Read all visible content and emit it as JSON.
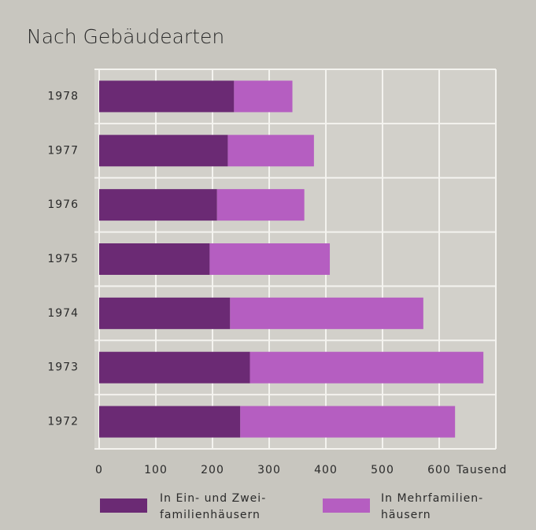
{
  "chart_data": {
    "type": "stacked-horizontal-bar",
    "title": "Nach Gebäudearten",
    "categories": [
      "1978",
      "1977",
      "1976",
      "1975",
      "1974",
      "1973",
      "1972"
    ],
    "series": [
      {
        "name": "In Ein- und Zwei-\nfamilienhäusern",
        "color": "#6b2a74",
        "values": [
          238,
          227,
          208,
          195,
          231,
          266,
          249
        ]
      },
      {
        "name": "In Mehrfamilien-\nhäusern",
        "color": "#b55ec1",
        "values": [
          103,
          152,
          154,
          212,
          341,
          412,
          379
        ]
      }
    ],
    "xlim": [
      0,
      700
    ],
    "xticks": [
      0,
      100,
      200,
      300,
      400,
      500,
      600
    ],
    "x_unit": "Tausend",
    "grid": true
  }
}
